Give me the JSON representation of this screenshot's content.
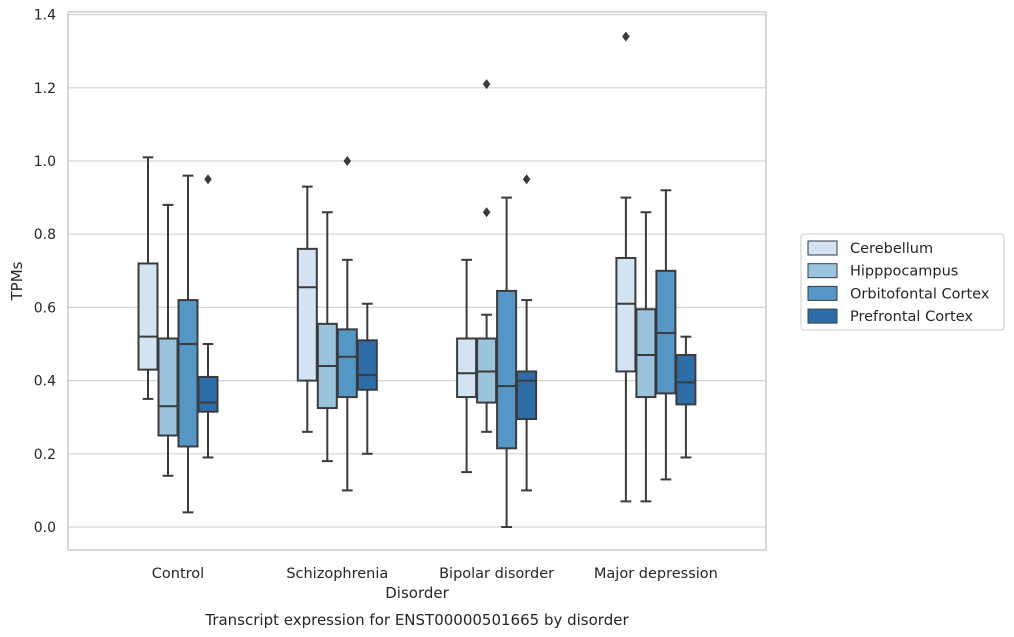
{
  "chart_data": {
    "type": "box",
    "title": "Transcript expression for ENST00000501665 by disorder",
    "xlabel": "Disorder",
    "ylabel": "TPMs",
    "ylim": [
      -0.06,
      1.41
    ],
    "yticks": [
      0.0,
      0.2,
      0.4,
      0.6,
      0.8,
      1.0,
      1.2,
      1.4
    ],
    "ytick_labels": [
      "0.0",
      "0.2",
      "0.4",
      "0.6",
      "0.8",
      "1.0",
      "1.2",
      "1.4"
    ],
    "categories": [
      "Control",
      "Schizophrenia",
      "Bipolar disorder",
      "Major depression"
    ],
    "grid": "horizontal",
    "legend_position": "right",
    "series": [
      {
        "name": "Cerebellum",
        "color": "#d3e3f2",
        "boxes": [
          {
            "whislo": 0.35,
            "q1": 0.43,
            "med": 0.52,
            "q3": 0.72,
            "whishi": 1.01,
            "fliers": []
          },
          {
            "whislo": 0.26,
            "q1": 0.4,
            "med": 0.655,
            "q3": 0.76,
            "whishi": 0.93,
            "fliers": []
          },
          {
            "whislo": 0.15,
            "q1": 0.355,
            "med": 0.42,
            "q3": 0.515,
            "whishi": 0.73,
            "fliers": []
          },
          {
            "whislo": 0.07,
            "q1": 0.425,
            "med": 0.61,
            "q3": 0.735,
            "whishi": 0.9,
            "fliers": [
              1.34
            ]
          }
        ]
      },
      {
        "name": "Hipppocampus",
        "color": "#9ac4de",
        "boxes": [
          {
            "whislo": 0.14,
            "q1": 0.25,
            "med": 0.33,
            "q3": 0.515,
            "whishi": 0.88,
            "fliers": []
          },
          {
            "whislo": 0.18,
            "q1": 0.325,
            "med": 0.44,
            "q3": 0.555,
            "whishi": 0.86,
            "fliers": []
          },
          {
            "whislo": 0.26,
            "q1": 0.34,
            "med": 0.425,
            "q3": 0.515,
            "whishi": 0.58,
            "fliers": [
              0.86,
              1.21
            ]
          },
          {
            "whislo": 0.07,
            "q1": 0.355,
            "med": 0.47,
            "q3": 0.595,
            "whishi": 0.86,
            "fliers": []
          }
        ]
      },
      {
        "name": "Orbitofontal Cortex",
        "color": "#5497c7",
        "boxes": [
          {
            "whislo": 0.04,
            "q1": 0.22,
            "med": 0.5,
            "q3": 0.62,
            "whishi": 0.96,
            "fliers": []
          },
          {
            "whislo": 0.1,
            "q1": 0.355,
            "med": 0.465,
            "q3": 0.54,
            "whishi": 0.73,
            "fliers": [
              1.0
            ]
          },
          {
            "whislo": 0.0,
            "q1": 0.215,
            "med": 0.385,
            "q3": 0.645,
            "whishi": 0.9,
            "fliers": []
          },
          {
            "whislo": 0.13,
            "q1": 0.365,
            "med": 0.53,
            "q3": 0.7,
            "whishi": 0.92,
            "fliers": []
          }
        ]
      },
      {
        "name": "Prefrontal Cortex",
        "color": "#2d6ea8",
        "boxes": [
          {
            "whislo": 0.19,
            "q1": 0.315,
            "med": 0.34,
            "q3": 0.41,
            "whishi": 0.5,
            "fliers": [
              0.95
            ]
          },
          {
            "whislo": 0.2,
            "q1": 0.375,
            "med": 0.415,
            "q3": 0.51,
            "whishi": 0.61,
            "fliers": []
          },
          {
            "whislo": 0.1,
            "q1": 0.295,
            "med": 0.4,
            "q3": 0.425,
            "whishi": 0.62,
            "fliers": [
              0.95
            ]
          },
          {
            "whislo": 0.19,
            "q1": 0.335,
            "med": 0.395,
            "q3": 0.47,
            "whishi": 0.52,
            "fliers": []
          }
        ]
      }
    ]
  }
}
